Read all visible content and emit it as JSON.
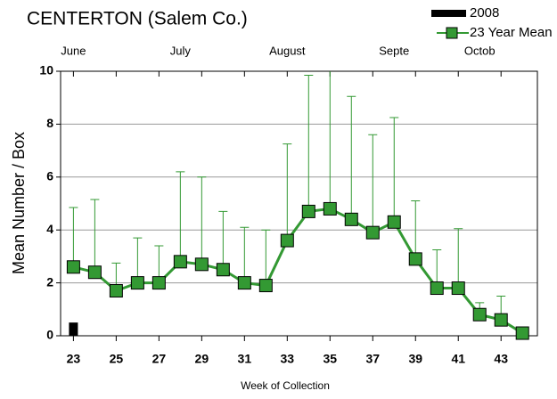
{
  "chart_data": {
    "type": "bar-line-errorbar",
    "title": "CENTERTON (Salem Co.)",
    "xlabel": "Week of Collection",
    "ylabel": "Mean Number / Box",
    "x": [
      23,
      24,
      25,
      26,
      27,
      28,
      29,
      30,
      31,
      32,
      33,
      34,
      35,
      36,
      37,
      38,
      39,
      40,
      41,
      42,
      43,
      44
    ],
    "series": [
      {
        "name": "2008",
        "color": "#000000",
        "kind": "bar",
        "values": [
          0.5,
          null,
          null,
          null,
          null,
          null,
          null,
          null,
          null,
          null,
          null,
          null,
          null,
          null,
          null,
          null,
          null,
          null,
          null,
          null,
          null,
          null
        ]
      },
      {
        "name": "23 Year Mean",
        "color": "#339933",
        "kind": "line",
        "values": [
          2.6,
          2.4,
          1.7,
          2.0,
          2.0,
          2.8,
          2.7,
          2.5,
          2.0,
          1.9,
          3.6,
          4.7,
          4.8,
          4.4,
          3.9,
          4.3,
          2.9,
          1.8,
          1.8,
          0.8,
          0.6,
          0.1
        ],
        "errors": [
          2.25,
          2.75,
          1.05,
          1.7,
          1.4,
          3.4,
          3.3,
          2.2,
          2.1,
          2.1,
          3.65,
          5.15,
          5.5,
          4.65,
          3.7,
          3.95,
          2.2,
          1.45,
          2.25,
          0.45,
          0.9,
          null
        ]
      }
    ],
    "month_labels": [
      {
        "text": "June",
        "x": 23
      },
      {
        "text": "July",
        "x": 28
      },
      {
        "text": "August",
        "x": 33
      },
      {
        "text": "Septe",
        "x": 38
      },
      {
        "text": "Octob",
        "x": 42
      }
    ],
    "xlim": [
      22.4,
      44.7
    ],
    "xticks": [
      23,
      25,
      27,
      29,
      31,
      33,
      35,
      37,
      39,
      41,
      43
    ],
    "ylim": [
      0,
      10
    ],
    "yticks": [
      0,
      2,
      4,
      6,
      8,
      10
    ],
    "grid": true,
    "legend": "top-right"
  }
}
